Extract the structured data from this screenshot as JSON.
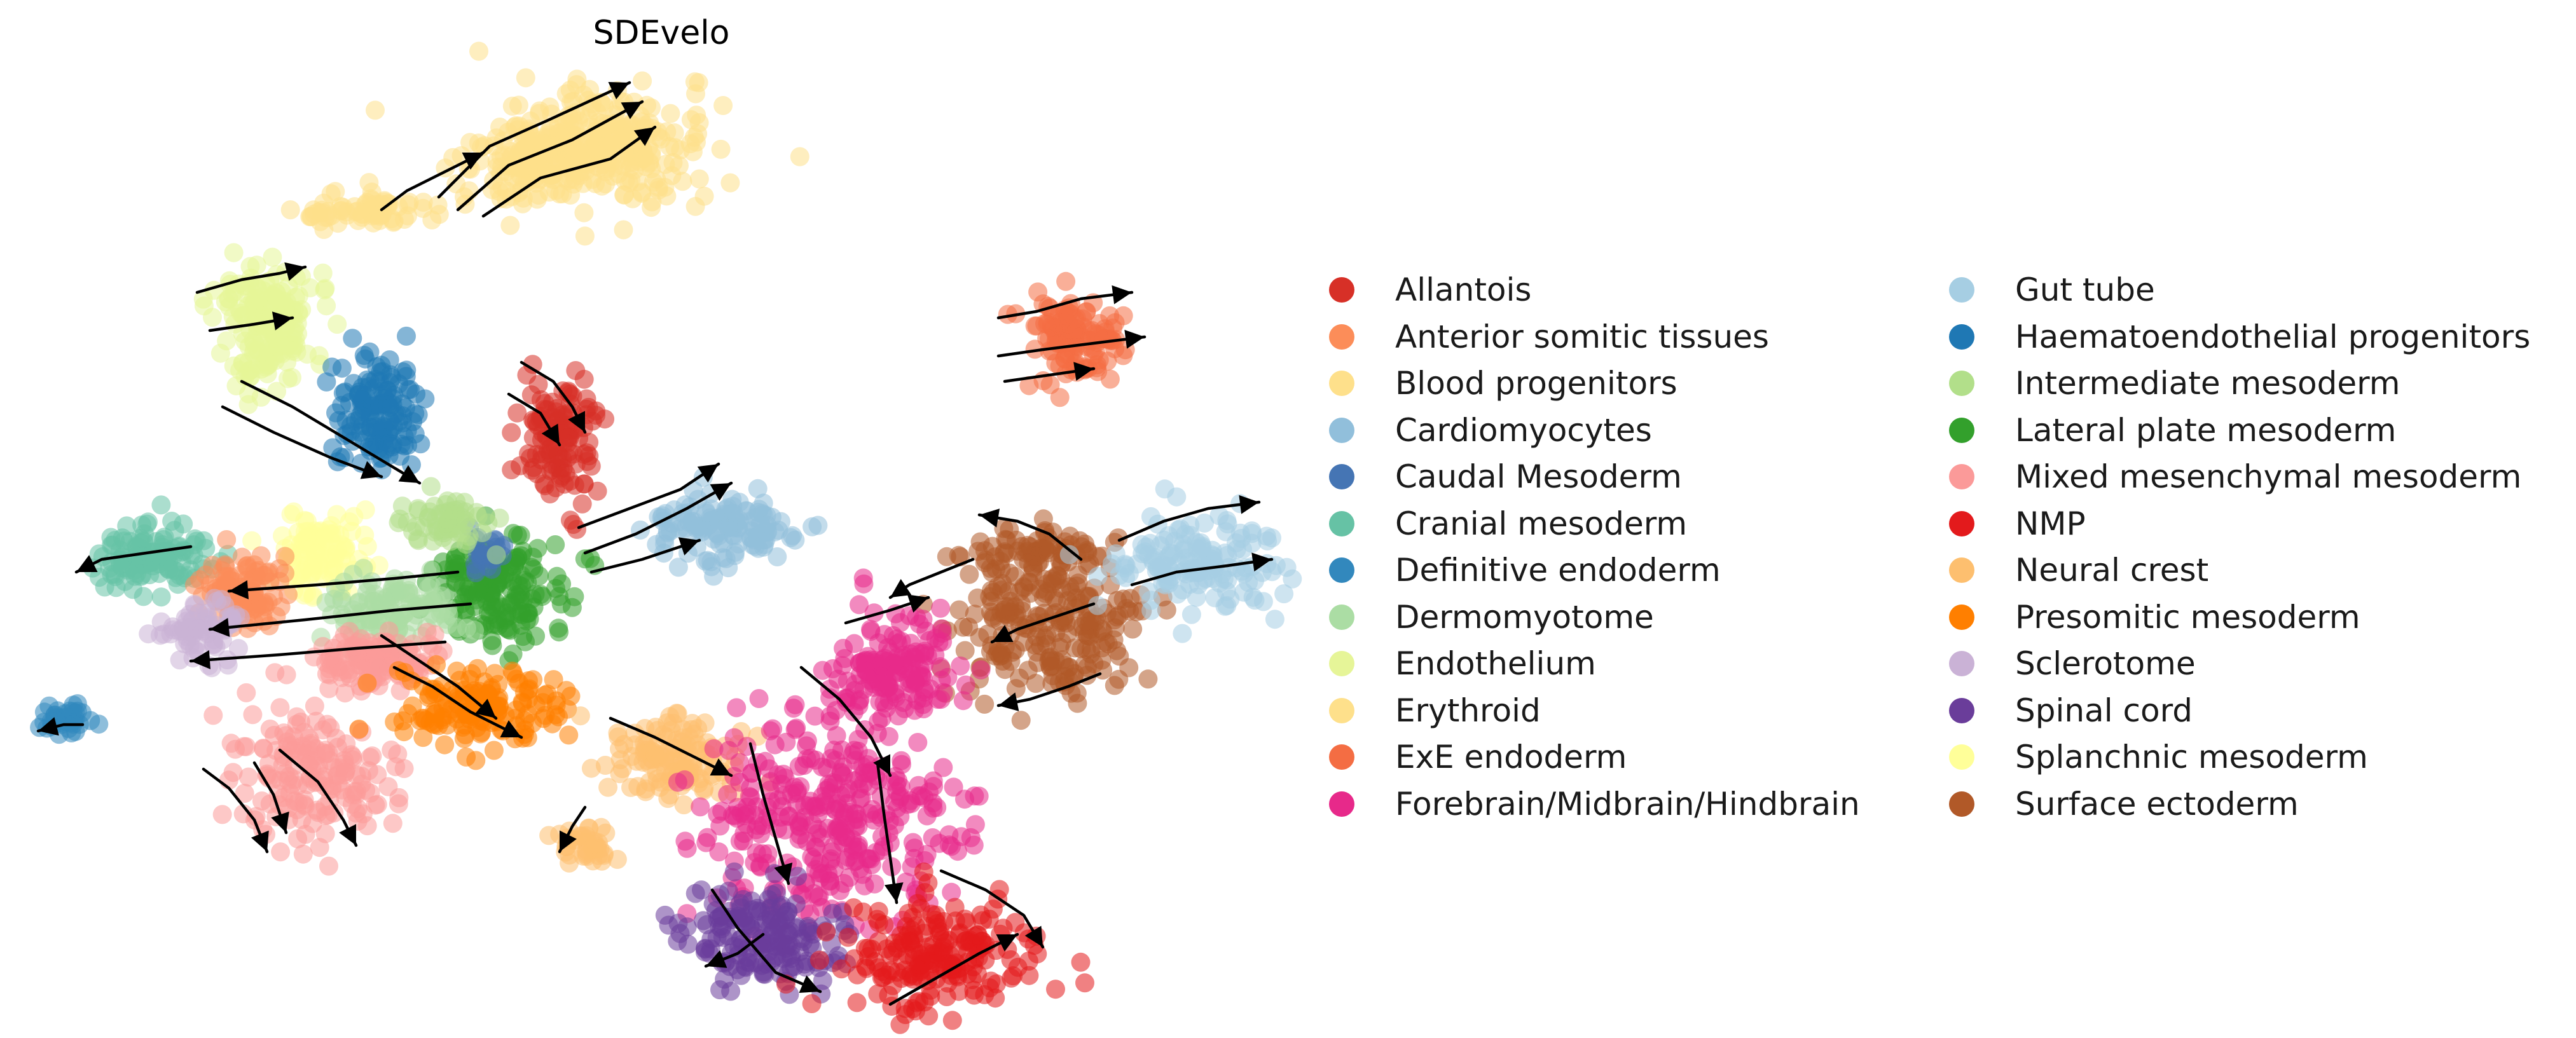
{
  "chart_data": {
    "type": "scatter",
    "title": "SDEvelo",
    "xlabel": "",
    "ylabel": "",
    "grid": false,
    "axes_visible": false,
    "overlay": "velocity streamlines with arrowheads",
    "legend_placement": "right, two columns",
    "series": [
      {
        "name": "Allantois",
        "color": "#d73027",
        "values": []
      },
      {
        "name": "Anterior somitic tissues",
        "color": "#fc8d59",
        "values": []
      },
      {
        "name": "Blood progenitors",
        "color": "#fee08b",
        "values": []
      },
      {
        "name": "Cardiomyocytes",
        "color": "#91bfdb",
        "values": []
      },
      {
        "name": "Caudal Mesoderm",
        "color": "#4575b4",
        "values": []
      },
      {
        "name": "Cranial mesoderm",
        "color": "#66c2a5",
        "values": []
      },
      {
        "name": "Definitive endoderm",
        "color": "#3288bd",
        "values": []
      },
      {
        "name": "Dermomyotome",
        "color": "#abdda4",
        "values": []
      },
      {
        "name": "Endothelium",
        "color": "#e6f598",
        "values": []
      },
      {
        "name": "Erythroid",
        "color": "#fee08b",
        "values": []
      },
      {
        "name": "ExE endoderm",
        "color": "#f46d43",
        "values": []
      },
      {
        "name": "Forebrain/Midbrain/Hindbrain",
        "color": "#e7298a",
        "values": []
      },
      {
        "name": "Gut tube",
        "color": "#a6cee3",
        "values": []
      },
      {
        "name": "Haematoendothelial progenitors",
        "color": "#1f78b4",
        "values": []
      },
      {
        "name": "Intermediate mesoderm",
        "color": "#b2df8a",
        "values": []
      },
      {
        "name": "Lateral plate mesoderm",
        "color": "#33a02c",
        "values": []
      },
      {
        "name": "Mixed mesenchymal mesoderm",
        "color": "#fb9a99",
        "values": []
      },
      {
        "name": "NMP",
        "color": "#e31a1c",
        "values": []
      },
      {
        "name": "Neural crest",
        "color": "#fdbf6f",
        "values": []
      },
      {
        "name": "Presomitic mesoderm",
        "color": "#ff7f00",
        "values": []
      },
      {
        "name": "Sclerotome",
        "color": "#cab2d6",
        "values": []
      },
      {
        "name": "Spinal cord",
        "color": "#6a3d9a",
        "values": []
      },
      {
        "name": "Splanchnic mesoderm",
        "color": "#ffff99",
        "values": []
      },
      {
        "name": "Surface ectoderm",
        "color": "#b15928",
        "values": []
      }
    ]
  }
}
